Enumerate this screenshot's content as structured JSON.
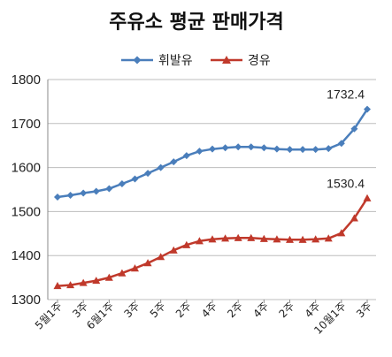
{
  "chart_data": {
    "type": "line",
    "title": "주유소 평균 판매가격",
    "x_tick_labels": [
      "5월1주",
      "3주",
      "6월1주",
      "3주",
      "5주",
      "2주",
      "4주",
      "2주",
      "4주",
      "2주",
      "4주",
      "10월1주",
      "3주"
    ],
    "ylim": [
      1300,
      1800
    ],
    "yticks": [
      1300,
      1400,
      1500,
      1600,
      1700,
      1800
    ],
    "grid": true,
    "legend_position": "top",
    "series": [
      {
        "name": "휘발유",
        "color": "#4a7ebb",
        "marker": "diamond",
        "values": [
          1533,
          1537,
          1542,
          1546,
          1552,
          1563,
          1574,
          1587,
          1600,
          1613,
          1627,
          1637,
          1642,
          1645,
          1647,
          1647,
          1645,
          1642,
          1641,
          1641,
          1641,
          1643,
          1655,
          1688,
          1732.4
        ]
      },
      {
        "name": "경유",
        "color": "#c0392b",
        "marker": "triangle",
        "values": [
          1331,
          1333,
          1338,
          1343,
          1350,
          1360,
          1371,
          1383,
          1397,
          1412,
          1424,
          1433,
          1437,
          1439,
          1440,
          1440,
          1438,
          1437,
          1436,
          1436,
          1437,
          1439,
          1451,
          1485,
          1530.4
        ]
      }
    ],
    "annotations": [
      {
        "text": "1732.4",
        "series": 0,
        "index": 24
      },
      {
        "text": "1530.4",
        "series": 1,
        "index": 24
      }
    ]
  }
}
